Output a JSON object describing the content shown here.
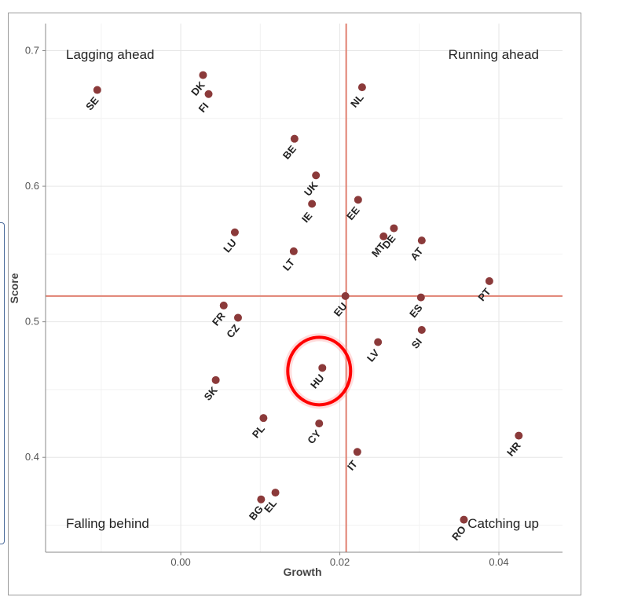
{
  "chart_data": {
    "type": "scatter",
    "xlabel": "Growth",
    "ylabel": "Score",
    "xlim": [
      -0.017,
      0.048
    ],
    "ylim": [
      0.33,
      0.72
    ],
    "x_ticks": [
      {
        "value": 0.0,
        "label": "0.00"
      },
      {
        "value": 0.02,
        "label": "0.02"
      },
      {
        "value": 0.04,
        "label": "0.04"
      }
    ],
    "y_ticks": [
      {
        "value": 0.4,
        "label": "0.4"
      },
      {
        "value": 0.5,
        "label": "0.5"
      },
      {
        "value": 0.6,
        "label": "0.6"
      },
      {
        "value": 0.7,
        "label": "0.7"
      }
    ],
    "reference_lines": {
      "x": 0.0208,
      "y": 0.519,
      "color": "#e08070"
    },
    "point_color": "#8b3a3a",
    "highlight": {
      "label": "HU",
      "color": "#ff0000"
    },
    "quadrant_labels": {
      "top_left": "Lagging ahead",
      "top_right": "Running ahead",
      "bottom_left": "Falling behind",
      "bottom_right": "Catching up"
    },
    "points": [
      {
        "label": "SE",
        "x": -0.0105,
        "y": 0.671
      },
      {
        "label": "DK",
        "x": 0.0028,
        "y": 0.682
      },
      {
        "label": "FI",
        "x": 0.0035,
        "y": 0.668
      },
      {
        "label": "NL",
        "x": 0.0228,
        "y": 0.673
      },
      {
        "label": "BE",
        "x": 0.0143,
        "y": 0.635
      },
      {
        "label": "UK",
        "x": 0.017,
        "y": 0.608
      },
      {
        "label": "IE",
        "x": 0.0165,
        "y": 0.587
      },
      {
        "label": "EE",
        "x": 0.0223,
        "y": 0.59
      },
      {
        "label": "DE",
        "x": 0.0268,
        "y": 0.569
      },
      {
        "label": "MT",
        "x": 0.0255,
        "y": 0.563
      },
      {
        "label": "AT",
        "x": 0.0303,
        "y": 0.56
      },
      {
        "label": "LU",
        "x": 0.0068,
        "y": 0.566
      },
      {
        "label": "LT",
        "x": 0.0142,
        "y": 0.552
      },
      {
        "label": "PT",
        "x": 0.0388,
        "y": 0.53
      },
      {
        "label": "EU",
        "x": 0.0207,
        "y": 0.519
      },
      {
        "label": "ES",
        "x": 0.0302,
        "y": 0.518
      },
      {
        "label": "FR",
        "x": 0.0054,
        "y": 0.512
      },
      {
        "label": "CZ",
        "x": 0.0072,
        "y": 0.503
      },
      {
        "label": "SI",
        "x": 0.0303,
        "y": 0.494
      },
      {
        "label": "LV",
        "x": 0.0248,
        "y": 0.485
      },
      {
        "label": "HU",
        "x": 0.0178,
        "y": 0.466
      },
      {
        "label": "SK",
        "x": 0.0044,
        "y": 0.457
      },
      {
        "label": "PL",
        "x": 0.0104,
        "y": 0.429
      },
      {
        "label": "CY",
        "x": 0.0174,
        "y": 0.425
      },
      {
        "label": "HR",
        "x": 0.0425,
        "y": 0.416
      },
      {
        "label": "IT",
        "x": 0.0222,
        "y": 0.404
      },
      {
        "label": "EL",
        "x": 0.0119,
        "y": 0.374
      },
      {
        "label": "BG",
        "x": 0.0101,
        "y": 0.369
      },
      {
        "label": "RO",
        "x": 0.0356,
        "y": 0.354
      }
    ]
  }
}
